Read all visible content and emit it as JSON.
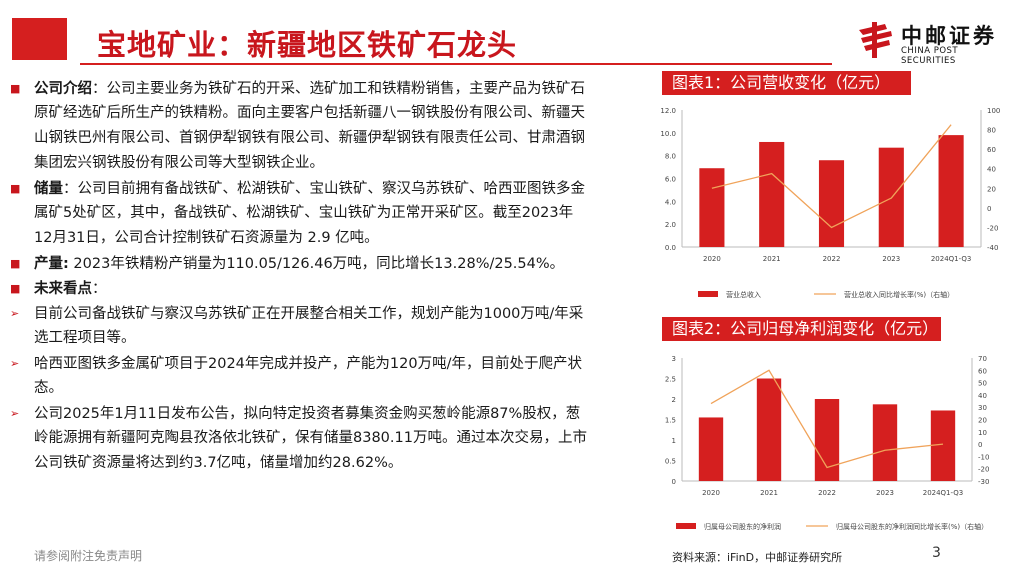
{
  "header": {
    "title": "宝地矿业：新疆地区铁矿石龙头",
    "logo_cn": "中邮证券",
    "logo_en": "CHINA POST SECURITIES"
  },
  "body": {
    "lines": [
      {
        "bullet": "■",
        "bold": "公司介绍",
        "text": "：公司主要业务为铁矿石的开采、选矿加工和铁精粉销售，主要产品为铁矿石"
      },
      {
        "text": "原矿经选矿后所生产的铁精粉。面向主要客户包括新疆八一钢铁股份有限公司、新疆天"
      },
      {
        "text": "山钢铁巴州有限公司、首钢伊犁钢铁有限公司、新疆伊犁钢铁有限责任公司、甘肃酒钢"
      },
      {
        "text": "集团宏兴钢铁股份有限公司等大型钢铁企业。"
      },
      {
        "bullet": "■",
        "bold": "储量",
        "text": "：公司目前拥有备战铁矿、松湖铁矿、宝山铁矿、察汉乌苏铁矿、哈西亚图铁多金"
      },
      {
        "text": "属矿5处矿区，其中，备战铁矿、松湖铁矿、宝山铁矿为正常开采矿区。截至2023年"
      },
      {
        "text": "12月31日，公司合计控制铁矿石资源量为 2.9 亿吨。"
      },
      {
        "bullet": "■",
        "bold": "产量:",
        "text": " 2023年铁精粉产销量为110.05/126.46万吨，同比增长13.28%/25.54%。"
      },
      {
        "bullet": "■",
        "bold": "未来看点",
        "text": "："
      },
      {
        "bullet": "➢",
        "text": "目前公司备战铁矿与察汉乌苏铁矿正在开展整合相关工作，规划产能为1000万吨/年采"
      },
      {
        "text": "选工程项目等。"
      },
      {
        "bullet": "➢",
        "text": "哈西亚图铁多金属矿项目于2024年完成并投产，产能为120万吨/年，目前处于爬产状"
      },
      {
        "text": "态。"
      },
      {
        "bullet": "➢",
        "text": "公司2025年1月11日发布公告，拟向特定投资者募集资金购买葱岭能源87%股权，葱"
      },
      {
        "text": "岭能源拥有新疆阿克陶县孜洛依北铁矿，保有储量8380.11万吨。通过本次交易，上市"
      },
      {
        "text": "公司铁矿资源量将达到约3.7亿吨，储量增加约28.62%。"
      }
    ]
  },
  "panel1_title": "图表1：公司营收变化（亿元）",
  "panel2_title": "图表2：公司归母净利润变化（亿元）",
  "chart_data": [
    {
      "type": "bar",
      "categories": [
        "2020",
        "2021",
        "2022",
        "2023",
        "2024Q1-Q3"
      ],
      "series": [
        {
          "name": "营业总收入",
          "type": "bar",
          "axis": "left",
          "values": [
            6.9,
            9.2,
            7.6,
            8.7,
            9.8
          ]
        },
        {
          "name": "营业总收入同比增长率(%)（右轴）",
          "type": "line",
          "axis": "right",
          "values": [
            20,
            35,
            -20,
            10,
            85
          ]
        }
      ],
      "y_left": {
        "min": 0,
        "max": 12,
        "ticks": [
          "0.0",
          "2.0",
          "4.0",
          "6.0",
          "8.0",
          "10.0",
          "12.0"
        ]
      },
      "y_right": {
        "min": -40,
        "max": 100,
        "ticks": [
          "-40",
          "-20",
          "0",
          "20",
          "40",
          "60",
          "80",
          "100"
        ]
      },
      "legend": "bottom"
    },
    {
      "type": "bar",
      "categories": [
        "2020",
        "2021",
        "2022",
        "2023",
        "2024Q1-Q3"
      ],
      "series": [
        {
          "name": "归属母公司股东的净利润",
          "type": "bar",
          "axis": "left",
          "values": [
            1.55,
            2.5,
            2.0,
            1.87,
            1.72
          ]
        },
        {
          "name": "归属母公司股东的净利润同比增长率(%)（右轴）",
          "type": "line",
          "axis": "right",
          "values": [
            33,
            60,
            -19,
            -5,
            0
          ]
        }
      ],
      "y_left": {
        "min": 0,
        "max": 3,
        "ticks": [
          "0",
          "0.5",
          "1",
          "1.5",
          "2",
          "2.5",
          "3"
        ]
      },
      "y_right": {
        "min": -30,
        "max": 70,
        "ticks": [
          "-30",
          "-20",
          "-10",
          "0",
          "10",
          "20",
          "30",
          "40",
          "50",
          "60",
          "70"
        ]
      },
      "legend": "bottom"
    }
  ],
  "footer": {
    "disclaimer": "请参阅附注免责声明",
    "source": "资料来源：iFinD，中邮证券研究所",
    "page": "3"
  },
  "colors": {
    "accent": "#d51f1f",
    "line": "#f0a35a"
  }
}
